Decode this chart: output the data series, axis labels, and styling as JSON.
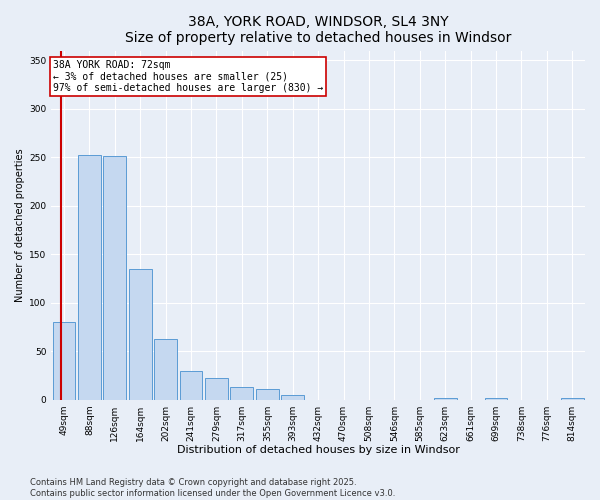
{
  "title": "38A, YORK ROAD, WINDSOR, SL4 3NY",
  "subtitle": "Size of property relative to detached houses in Windsor",
  "xlabel": "Distribution of detached houses by size in Windsor",
  "ylabel": "Number of detached properties",
  "categories": [
    "49sqm",
    "88sqm",
    "126sqm",
    "164sqm",
    "202sqm",
    "241sqm",
    "279sqm",
    "317sqm",
    "355sqm",
    "393sqm",
    "432sqm",
    "470sqm",
    "508sqm",
    "546sqm",
    "585sqm",
    "623sqm",
    "661sqm",
    "699sqm",
    "738sqm",
    "776sqm",
    "814sqm"
  ],
  "values": [
    80,
    252,
    251,
    135,
    62,
    30,
    22,
    13,
    11,
    5,
    0,
    0,
    0,
    0,
    0,
    2,
    0,
    2,
    0,
    0,
    2
  ],
  "bar_color": "#c5d8f0",
  "bar_edge_color": "#5b9bd5",
  "vline_color": "#cc0000",
  "vline_x": -0.1,
  "annotation_text": "38A YORK ROAD: 72sqm\n← 3% of detached houses are smaller (25)\n97% of semi-detached houses are larger (830) →",
  "annotation_box_color": "#ffffff",
  "annotation_box_edge_color": "#cc0000",
  "ylim": [
    0,
    360
  ],
  "yticks": [
    0,
    50,
    100,
    150,
    200,
    250,
    300,
    350
  ],
  "background_color": "#e8eef7",
  "plot_bg_color": "#e8eef7",
  "footer_line1": "Contains HM Land Registry data © Crown copyright and database right 2025.",
  "footer_line2": "Contains public sector information licensed under the Open Government Licence v3.0.",
  "title_fontsize": 10,
  "xlabel_fontsize": 8,
  "ylabel_fontsize": 7,
  "tick_fontsize": 6.5,
  "footer_fontsize": 6,
  "annotation_fontsize": 7
}
